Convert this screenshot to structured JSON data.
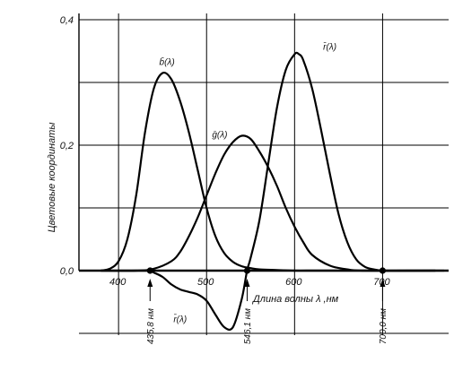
{
  "chart_data": {
    "type": "line",
    "ylabel": "Цветовые координаты",
    "xlabel": "Длина волны λ ,нм",
    "xlim": [
      355,
      775
    ],
    "ylim": [
      -0.1,
      0.41
    ],
    "grid": true,
    "y_ticks": [
      {
        "value": 0.0,
        "label": "0,0"
      },
      {
        "value": 0.2,
        "label": "0,2"
      },
      {
        "value": 0.4,
        "label": "0,4"
      }
    ],
    "x_ticks": [
      {
        "value": 400,
        "label": "400"
      },
      {
        "value": 500,
        "label": "500"
      },
      {
        "value": 600,
        "label": "600"
      },
      {
        "value": 700,
        "label": "700"
      }
    ],
    "grid_y": [
      -0.1,
      0.0,
      0.1,
      0.2,
      0.3,
      0.4
    ],
    "grid_x": [
      400,
      500,
      600,
      700
    ],
    "series": [
      {
        "name": "b̄(λ)",
        "x": [
          380,
          390,
          400,
          410,
          420,
          430,
          440,
          450,
          460,
          470,
          480,
          490,
          500,
          510,
          520,
          530,
          540,
          550,
          560,
          580,
          600,
          620,
          640,
          680,
          760
        ],
        "y": [
          0.0,
          0.003,
          0.015,
          0.05,
          0.12,
          0.22,
          0.29,
          0.315,
          0.305,
          0.27,
          0.22,
          0.16,
          0.1,
          0.055,
          0.028,
          0.014,
          0.007,
          0.004,
          0.002,
          0.001,
          0.0,
          0.0,
          0.0,
          0.0,
          0.0
        ]
      },
      {
        "name": "ḡ(λ)",
        "x": [
          380,
          420,
          440,
          460,
          470,
          480,
          490,
          500,
          510,
          520,
          530,
          540,
          550,
          560,
          570,
          580,
          590,
          600,
          610,
          620,
          640,
          660,
          680,
          760
        ],
        "y": [
          0.0,
          0.0,
          0.003,
          0.015,
          0.03,
          0.055,
          0.085,
          0.12,
          0.155,
          0.185,
          0.205,
          0.215,
          0.21,
          0.19,
          0.165,
          0.135,
          0.1,
          0.07,
          0.045,
          0.025,
          0.008,
          0.002,
          0.0,
          0.0
        ]
      },
      {
        "name": "r̄(λ)",
        "x": [
          380,
          420,
          430,
          436,
          440,
          450,
          460,
          470,
          480,
          490,
          500,
          510,
          520,
          530,
          540,
          546,
          550,
          560,
          570,
          580,
          590,
          600,
          605,
          610,
          620,
          630,
          640,
          650,
          660,
          670,
          680,
          690,
          700,
          720,
          770
        ],
        "y": [
          0.0,
          0.0,
          0.0,
          0.0,
          -0.003,
          -0.01,
          -0.022,
          -0.03,
          -0.034,
          -0.038,
          -0.048,
          -0.07,
          -0.09,
          -0.09,
          -0.045,
          0.0,
          0.02,
          0.08,
          0.17,
          0.26,
          0.32,
          0.345,
          0.345,
          0.335,
          0.29,
          0.225,
          0.155,
          0.09,
          0.045,
          0.018,
          0.006,
          0.002,
          0.0,
          0.0,
          0.0
        ]
      }
    ],
    "series_labels": [
      {
        "series": "b̄(λ)",
        "text": "b̄(λ)",
        "x": 455,
        "y": 0.328
      },
      {
        "series": "ḡ(λ)",
        "text": "ḡ(λ)",
        "x": 515,
        "y": 0.212
      },
      {
        "series": "r̄(λ)",
        "text": "r̄(λ)",
        "x": 640,
        "y": 0.352
      },
      {
        "series": "r̄(λ)",
        "text": "r̄(λ)",
        "x": 470,
        "y": -0.082
      }
    ],
    "annotations": [
      {
        "x": 435.8,
        "label": "435,8 нм"
      },
      {
        "x": 546.1,
        "label": "546,1 нм"
      },
      {
        "x": 700.0,
        "label": "700,0 нм"
      }
    ]
  }
}
